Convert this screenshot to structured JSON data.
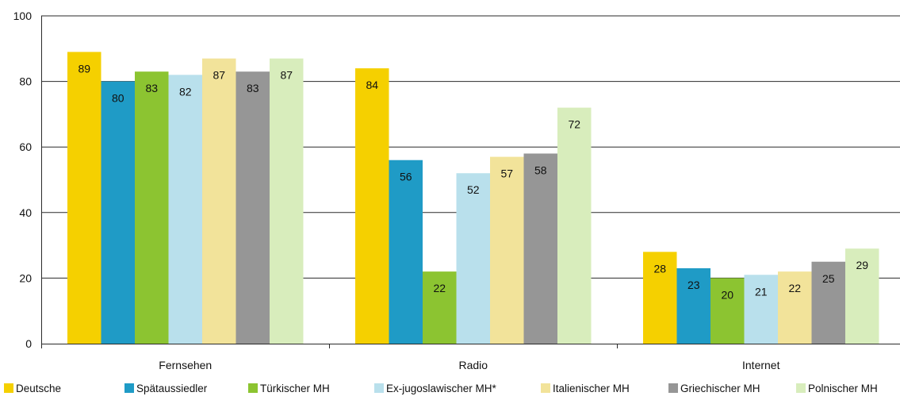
{
  "chart_data": {
    "type": "bar",
    "title": "",
    "xlabel": "",
    "ylabel": "",
    "ylim": [
      0,
      100
    ],
    "yticks": [
      0,
      20,
      40,
      60,
      80,
      100
    ],
    "grid": true,
    "legend_position": "bottom",
    "show_value_labels": true,
    "categories": [
      "Fernsehen",
      "Radio",
      "Internet"
    ],
    "series": [
      {
        "name": "Deutsche",
        "color": "#f5d000",
        "values": [
          89,
          84,
          28
        ]
      },
      {
        "name": "Spätaussiedler",
        "color": "#1f9bc6",
        "values": [
          80,
          56,
          23
        ]
      },
      {
        "name": "Türkischer MH",
        "color": "#8cc431",
        "values": [
          83,
          22,
          20
        ]
      },
      {
        "name": "Ex-jugoslawischer MH*",
        "color": "#b9e0ec",
        "values": [
          82,
          52,
          21
        ]
      },
      {
        "name": "Italienischer MH",
        "color": "#f2e39a",
        "values": [
          87,
          57,
          22
        ]
      },
      {
        "name": "Griechischer MH",
        "color": "#969696",
        "values": [
          83,
          58,
          25
        ]
      },
      {
        "name": "Polnischer MH",
        "color": "#d8edbc",
        "values": [
          87,
          72,
          29
        ]
      }
    ]
  }
}
